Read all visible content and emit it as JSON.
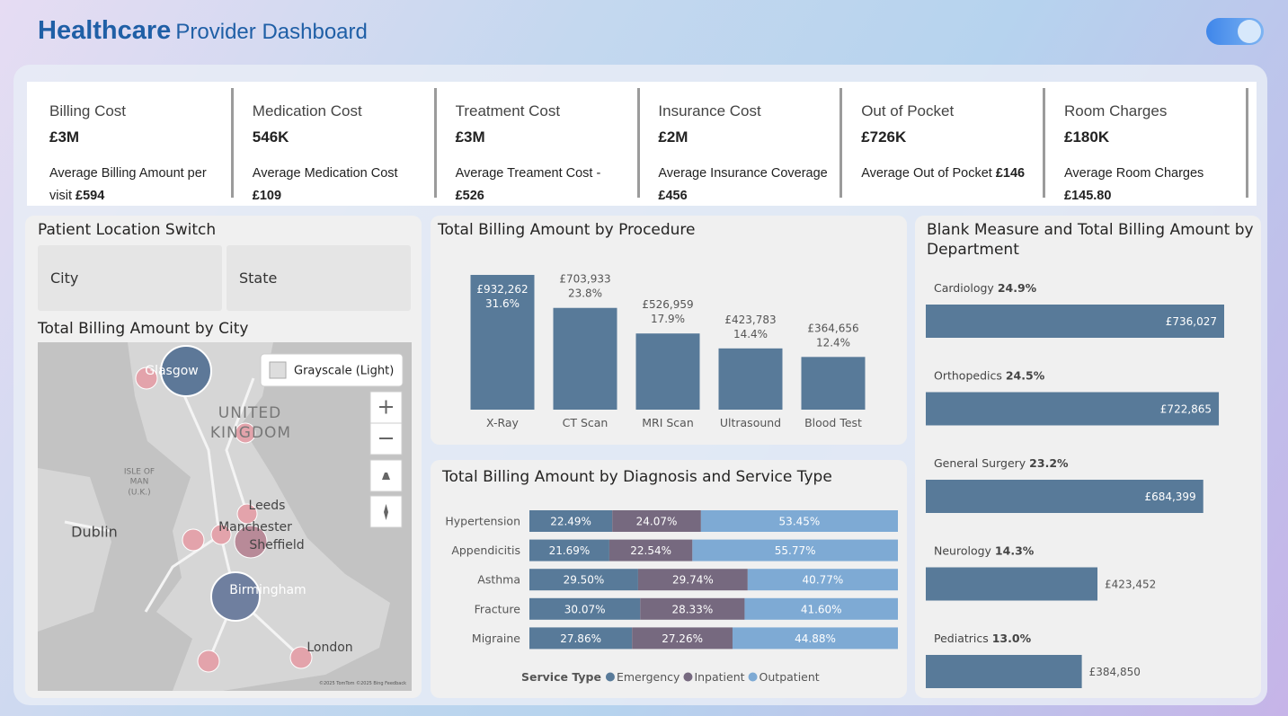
{
  "header": {
    "title_bold": "Healthcare",
    "title_rest": "Provider Dashboard"
  },
  "kpis": [
    {
      "title": "Billing Cost",
      "value": "£3M",
      "subtitle": "Average Billing Amount per visit",
      "subvalue": "£594"
    },
    {
      "title": "Medication Cost",
      "value": "546K",
      "subtitle": "Average Medication Cost",
      "subvalue": "£109"
    },
    {
      "title": "Treatment Cost",
      "value": "£3M",
      "subtitle": "Average Treament Cost -",
      "subvalue": "£526"
    },
    {
      "title": "Insurance Cost",
      "value": "£2M",
      "subtitle": "Average Insurance Coverage",
      "subvalue": "£456"
    },
    {
      "title": "Out of Pocket",
      "value": "£726K",
      "subtitle": "Average Out of Pocket",
      "subvalue": "£146"
    },
    {
      "title": "Room Charges",
      "value": "£180K",
      "subtitle": "Average Room Charges",
      "subvalue": "£145.80"
    }
  ],
  "slicer": {
    "title": "Patient Location Switch",
    "options": [
      "City",
      "State"
    ]
  },
  "map": {
    "title": "Total Billing Amount by City",
    "style_button": "Grayscale (Light)",
    "labels": [
      "Glasgow",
      "UNITED",
      "KINGDOM",
      "ISLE OF",
      "MAN",
      "(U.K.)",
      "Dublin",
      "Leeds",
      "Manchester",
      "Sheffield",
      "Birmingham",
      "London"
    ],
    "attribution": "©2025 TomTom ©2025 Bing Feedback"
  },
  "chart_data": [
    {
      "type": "bar",
      "title": "Total Billing Amount by Procedure",
      "color": "#587a99",
      "categories": [
        "X-Ray",
        "CT Scan",
        "MRI Scan",
        "Ultrasound",
        "Blood Test"
      ],
      "values": [
        932262,
        703933,
        526959,
        423783,
        364656
      ],
      "value_labels": [
        "£932,262",
        "£703,933",
        "£526,959",
        "£423,783",
        "£364,656"
      ],
      "share_labels": [
        "31.6%",
        "23.8%",
        "17.9%",
        "14.4%",
        "12.4%"
      ]
    },
    {
      "type": "stacked-bar",
      "title": "Total Billing Amount by Diagnosis and Service Type",
      "legend_title": "Service Type",
      "categories": [
        "Hypertension",
        "Appendicitis",
        "Asthma",
        "Fracture",
        "Migraine"
      ],
      "series": [
        {
          "name": "Emergency",
          "color": "#587a99",
          "values": [
            22.49,
            21.69,
            29.5,
            30.07,
            27.86
          ],
          "value_labels": [
            "22.49%",
            "21.69%",
            "29.50%",
            "30.07%",
            "27.86%"
          ]
        },
        {
          "name": "Inpatient",
          "color": "#76697f",
          "values": [
            24.07,
            22.54,
            29.74,
            28.33,
            27.26
          ],
          "value_labels": [
            "24.07%",
            "22.54%",
            "29.74%",
            "28.33%",
            "27.26%"
          ]
        },
        {
          "name": "Outpatient",
          "color": "#7eaad4",
          "values": [
            53.45,
            55.77,
            40.77,
            41.6,
            44.88
          ],
          "value_labels": [
            "53.45%",
            "55.77%",
            "40.77%",
            "41.60%",
            "44.88%"
          ]
        }
      ]
    },
    {
      "type": "hbar",
      "title": "Blank Measure and Total Billing Amount by Department",
      "color": "#587a99",
      "categories": [
        "Cardiology",
        "Orthopedics",
        "General Surgery",
        "Neurology",
        "Pediatrics"
      ],
      "share_labels": [
        "24.9%",
        "24.5%",
        "23.2%",
        "14.3%",
        "13.0%"
      ],
      "values": [
        736027,
        722865,
        684399,
        423452,
        384850
      ],
      "value_labels": [
        "£736,027",
        "£722,865",
        "£684,399",
        "£423,452",
        "£384,850"
      ]
    }
  ]
}
